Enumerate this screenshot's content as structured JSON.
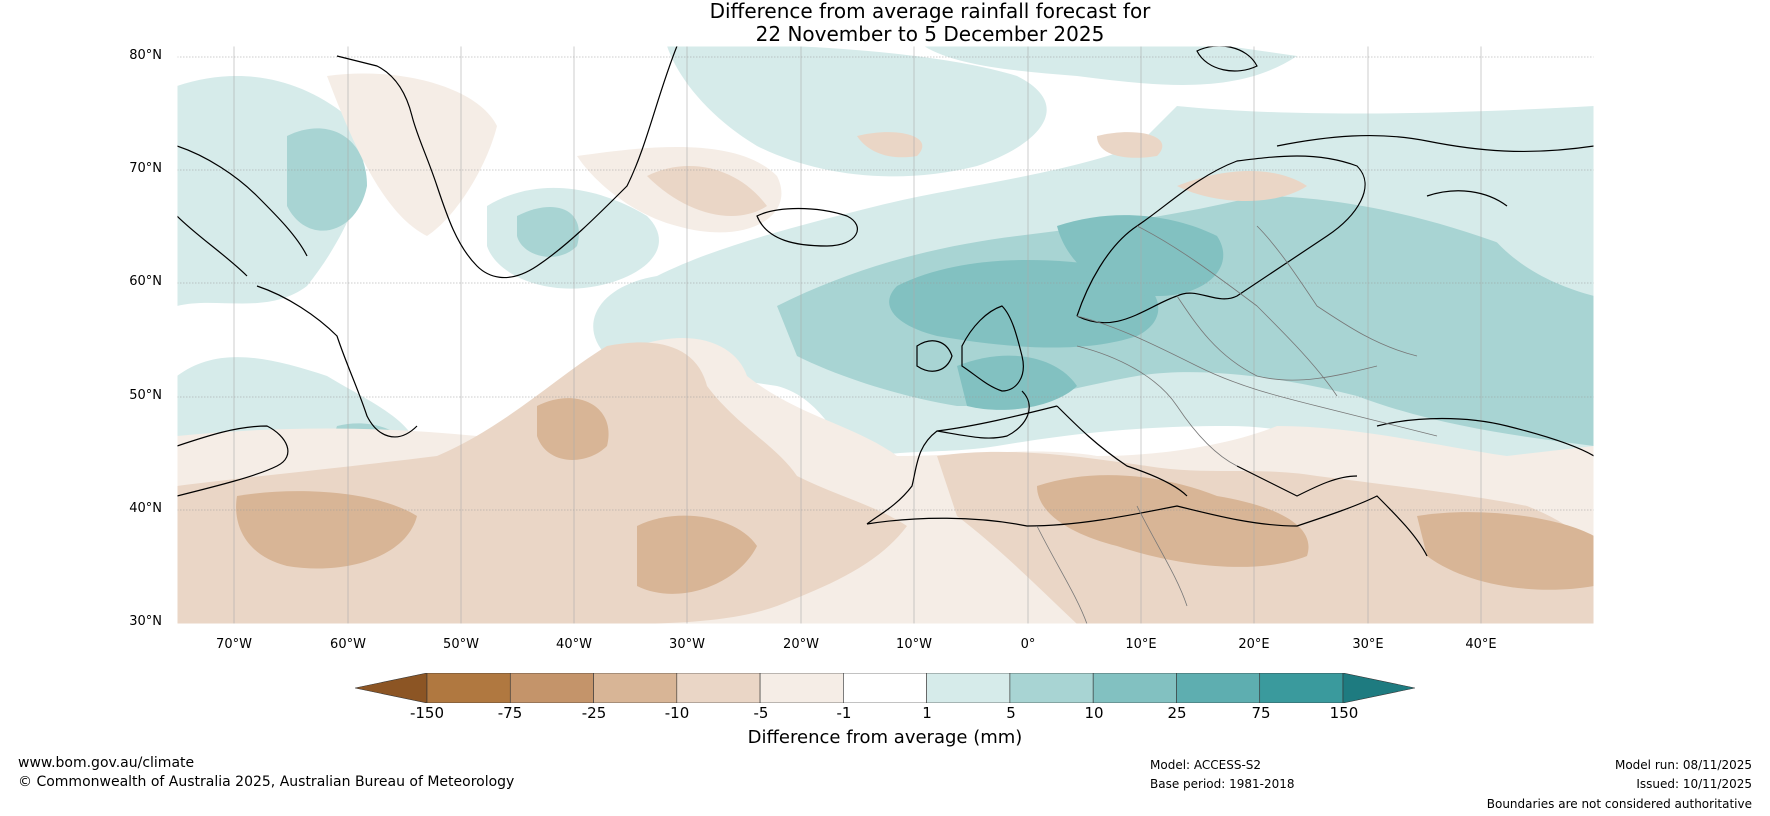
{
  "title": {
    "line1": "Difference from average rainfall forecast for",
    "line2": "22 November to 5 December 2025"
  },
  "lat_labels": [
    "80°N",
    "70°N",
    "60°N",
    "50°N",
    "40°N",
    "30°N"
  ],
  "lon_labels": [
    "70°W",
    "60°W",
    "50°W",
    "40°W",
    "30°W",
    "20°W",
    "10°W",
    "0°",
    "10°E",
    "20°E",
    "30°E",
    "40°E"
  ],
  "colorbar": {
    "ticks": [
      "-150",
      "-75",
      "-25",
      "-10",
      "-5",
      "-1",
      "1",
      "5",
      "10",
      "25",
      "75",
      "150"
    ],
    "colors": [
      "#8c5524",
      "#b07840",
      "#c4946a",
      "#d8b596",
      "#ead6c6",
      "#f5ede6",
      "#ffffff",
      "#d6ebea",
      "#a8d4d3",
      "#82c1c1",
      "#5eaeb0",
      "#3a9a9d",
      "#1e7b80"
    ],
    "label": "Difference from average (mm)"
  },
  "footer": {
    "website": "www.bom.gov.au/climate",
    "copyright": "© Commonwealth of Australia 2025, Australian Bureau of Meteorology",
    "model": "Model: ACCESS-S2",
    "base_period": "Base period: 1981-2018",
    "model_run": "Model run: 08/11/2025",
    "issued": "Issued: 10/11/2025",
    "disclaimer": "Boundaries are not considered authoritative"
  }
}
